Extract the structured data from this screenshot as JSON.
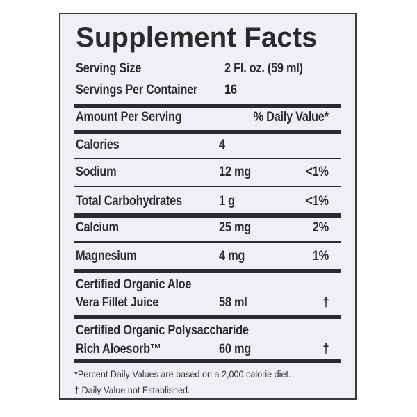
{
  "title": "Supplement Facts",
  "serving_size": {
    "label": "Serving Size",
    "value": "2 Fl. oz. (59 ml)"
  },
  "servings_per_container": {
    "label": "Servings Per Container",
    "value": "16"
  },
  "header": {
    "amount_label": "Amount Per Serving",
    "dv_label": "% Daily Value*"
  },
  "rows": [
    {
      "name": "Calories",
      "amount": "4",
      "dv": ""
    },
    {
      "name": "Sodium",
      "amount": "12 mg",
      "dv": "<1%"
    },
    {
      "name": "Total Carbohydrates",
      "amount": "1 g",
      "dv": "<1%"
    },
    {
      "name": "Calcium",
      "amount": "25 mg",
      "dv": "2%"
    },
    {
      "name": "Magnesium",
      "amount": "4 mg",
      "dv": "1%"
    },
    {
      "name_line1": "Certified Organic Aloe",
      "name_line2": "Vera Fillet Juice",
      "amount": "58 ml",
      "dv": "†"
    },
    {
      "name_line1": "Certified Organic Polysaccharide",
      "name_line2": "Rich Aloesorb™",
      "amount": "60 mg",
      "dv": "†"
    }
  ],
  "footnotes": [
    "*Percent Daily Values are based on a 2,000 calorie diet.",
    "† Daily Value not Established."
  ]
}
